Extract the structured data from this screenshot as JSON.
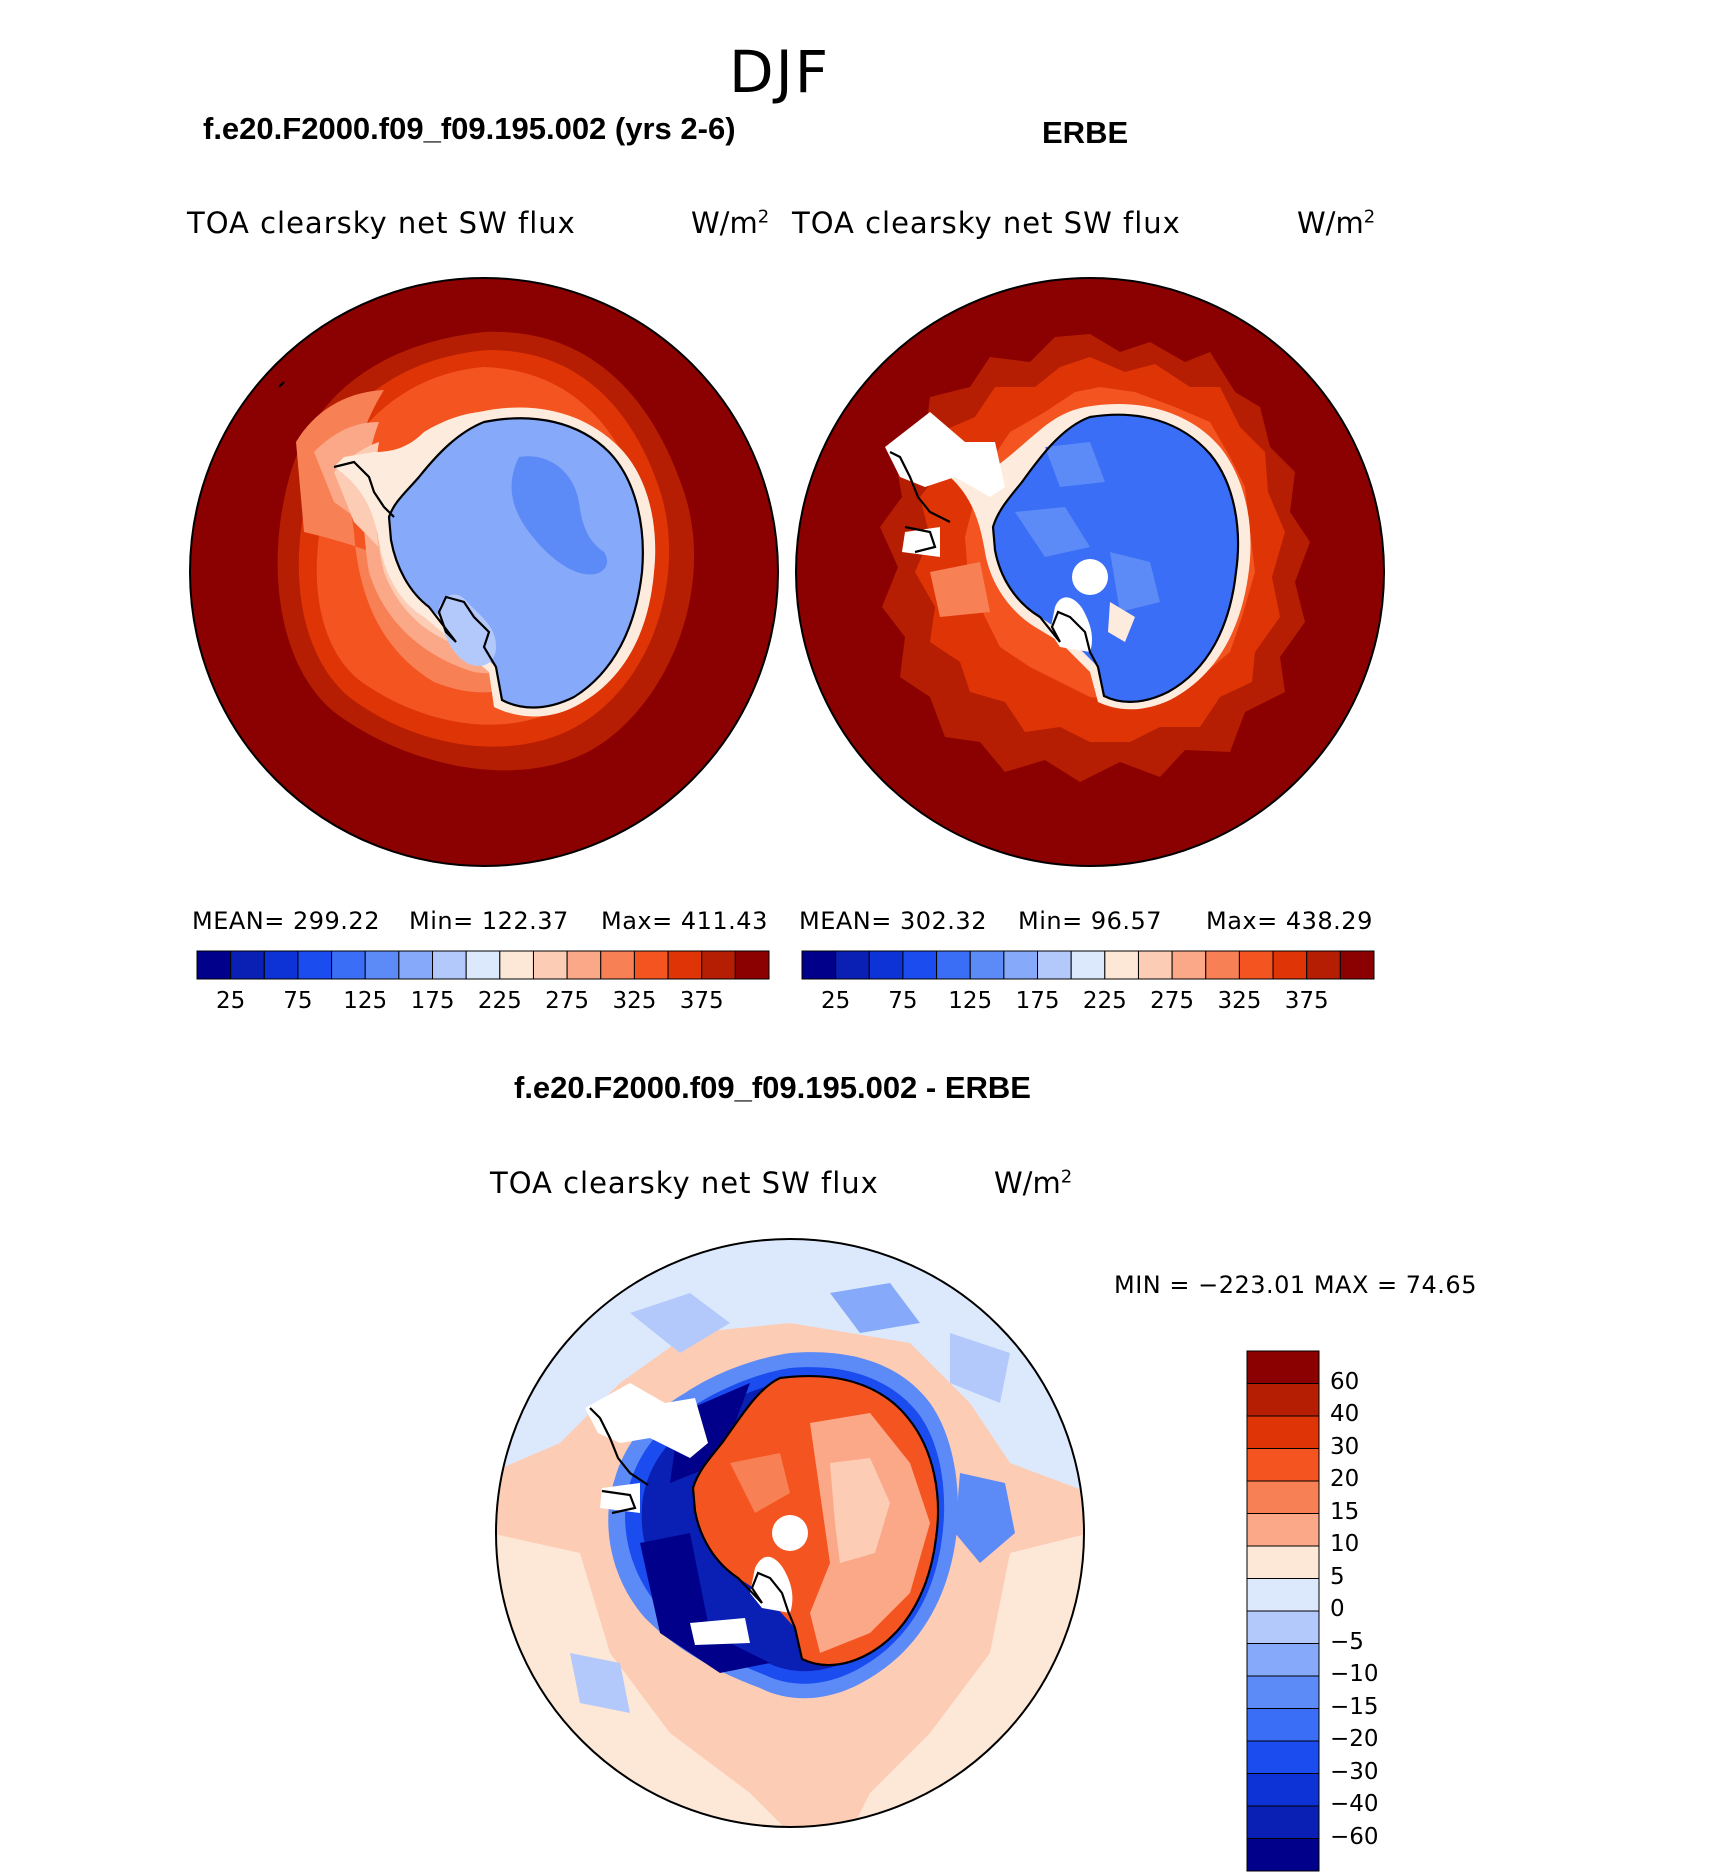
{
  "season": "DJF",
  "panels": [
    {
      "title": "f.e20.F2000.f09_f09.195.002 (yrs 2-6)",
      "variable": "TOA clearsky net SW flux",
      "unit_base": "W/m",
      "unit_exp": "2",
      "stats": {
        "mean": "MEAN= 299.22",
        "min": "Min= 122.37",
        "max": "Max= 411.43"
      }
    },
    {
      "title": "ERBE",
      "variable": "TOA clearsky net SW flux",
      "unit_base": "W/m",
      "unit_exp": "2",
      "stats": {
        "mean": "MEAN= 302.32",
        "min": "Min=   96.57",
        "max": "Max= 438.29"
      }
    }
  ],
  "diff": {
    "title": "f.e20.F2000.f09_f09.195.002 - ERBE",
    "variable": "TOA clearsky net SW flux",
    "unit_base": "W/m",
    "unit_exp": "2",
    "minmax": "MIN = −223.01  MAX =   74.65"
  },
  "colorbar_abs": {
    "colors": [
      "#00008b",
      "#0a1fb4",
      "#0d33d6",
      "#1a4cf0",
      "#3a6ef6",
      "#5c8bf7",
      "#86a9f9",
      "#b3c9fb",
      "#dce9fd",
      "#fde7d6",
      "#fdccb4",
      "#fba889",
      "#f88055",
      "#f4541f",
      "#df3406",
      "#b51e02",
      "#8b0000"
    ],
    "labels": [
      "25",
      "75",
      "125",
      "175",
      "225",
      "275",
      "325",
      "375"
    ]
  },
  "colorbar_diff": {
    "colors": [
      "#8b0000",
      "#b51e02",
      "#df3406",
      "#f4541f",
      "#f88055",
      "#fba889",
      "#fde7d6",
      "#dce9fd",
      "#b3c9fb",
      "#86a9f9",
      "#5c8bf7",
      "#3a6ef6",
      "#1a4cf0",
      "#0d33d6",
      "#0a1fb4",
      "#00008b"
    ],
    "labels": [
      "60",
      "40",
      "30",
      "20",
      "15",
      "10",
      "5",
      "0",
      "−5",
      "−10",
      "−15",
      "−20",
      "−30",
      "−40",
      "−60"
    ]
  }
}
